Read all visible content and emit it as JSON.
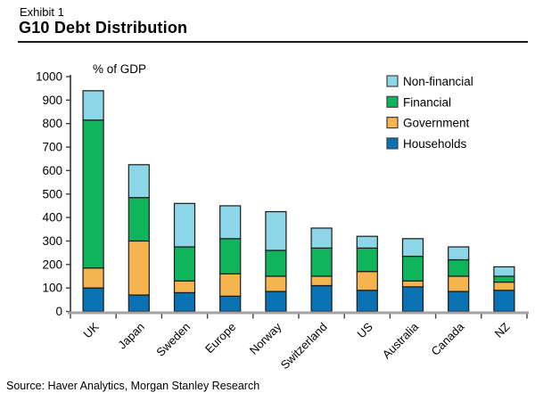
{
  "header": {
    "exhibit": "Exhibit 1",
    "title": "G10 Debt Distribution"
  },
  "source": "Source: Haver Analytics, Morgan Stanley Research",
  "chart_data": {
    "type": "bar",
    "stacked": true,
    "title": "G10 Debt Distribution",
    "unit_label": "% of GDP",
    "xlabel": "",
    "ylabel": "% of GDP",
    "ylim": [
      0,
      1000
    ],
    "ytick_step": 100,
    "grid": false,
    "legend_position": "top-right",
    "legend_order": [
      "Non-financial",
      "Financial",
      "Government",
      "Households"
    ],
    "categories": [
      "UK",
      "Japan",
      "Sweden",
      "Europe",
      "Norway",
      "Switzerland",
      "US",
      "Australia",
      "Canada",
      "NZ"
    ],
    "series": [
      {
        "name": "Households",
        "color": "#0a71b2",
        "values": [
          100,
          70,
          80,
          65,
          85,
          110,
          90,
          105,
          85,
          90
        ]
      },
      {
        "name": "Government",
        "color": "#f6b44f",
        "values": [
          85,
          230,
          50,
          95,
          65,
          40,
          80,
          25,
          65,
          35
        ]
      },
      {
        "name": "Financial",
        "color": "#10b45c",
        "values": [
          630,
          185,
          145,
          150,
          110,
          120,
          100,
          105,
          70,
          25
        ]
      },
      {
        "name": "Non-financial",
        "color": "#8cd6e7",
        "values": [
          125,
          140,
          185,
          140,
          165,
          85,
          50,
          75,
          55,
          40
        ]
      }
    ],
    "totals": [
      940,
      625,
      460,
      450,
      425,
      355,
      320,
      310,
      275,
      190
    ],
    "colors": {
      "bar_outline": "#1a1a1a",
      "x_axis": "#a3a3a3",
      "y_axis": "#262626",
      "tick": "#404040",
      "text": "#000000"
    }
  }
}
